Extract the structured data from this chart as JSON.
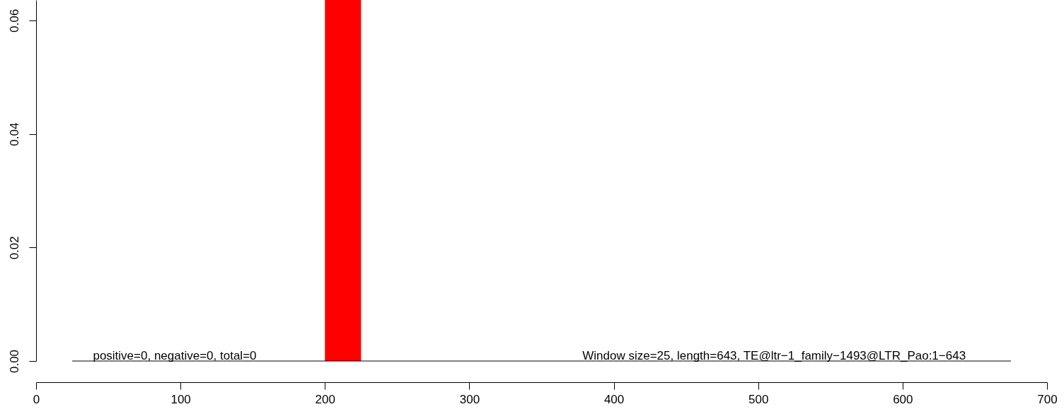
{
  "chart_data": {
    "type": "histogram",
    "series": [
      {
        "bins": [
          200,
          225
        ],
        "values": [
          0.0636
        ],
        "color": "#ff0000"
      },
      {
        "type": "line",
        "x": [
          25,
          675
        ],
        "values": [
          0,
          0
        ],
        "color": "#000000"
      }
    ],
    "xlim": [
      0,
      700
    ],
    "xticks": [
      0,
      100,
      200,
      300,
      400,
      500,
      600,
      700
    ],
    "ylim": [
      0,
      0.0636
    ],
    "yticks": [
      {
        "value": 0,
        "label": "0.00"
      },
      0.02,
      0.04,
      0.06
    ],
    "annotations": [
      {
        "text": "positive=0, negative=0, total=0",
        "x": 96,
        "y": 0
      },
      {
        "text": "Window size=25, length=643, TE@ltr−1_family−1493@LTR_Pao:1−643",
        "x": 511,
        "y": 0
      }
    ],
    "grid": false
  }
}
